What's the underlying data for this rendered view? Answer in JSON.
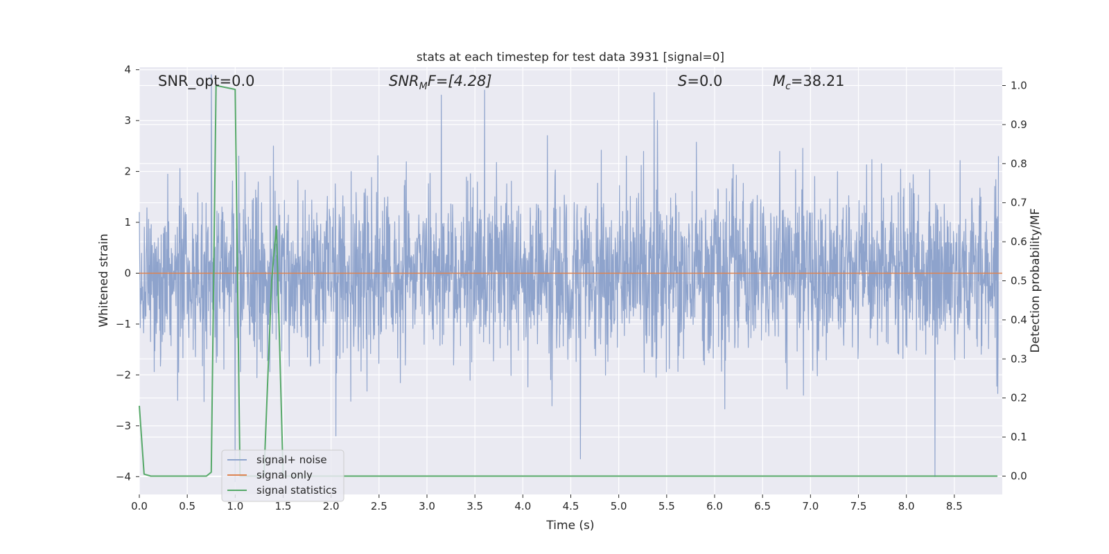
{
  "chart_data": {
    "type": "line",
    "title": "stats at each timestep for test data 3931 [signal=0]",
    "xlabel": "Time (s)",
    "ylabel": "Whitened strain",
    "ylabel_right": "Detection probability/MF",
    "xlim": [
      0.0,
      9.0
    ],
    "ylim": [
      -4.35,
      4.05
    ],
    "ylim_right": [
      -0.047,
      1.047
    ],
    "x_ticks": [
      "0.0",
      "0.5",
      "1.0",
      "1.5",
      "2.0",
      "2.5",
      "3.0",
      "3.5",
      "4.0",
      "4.5",
      "5.0",
      "5.5",
      "6.0",
      "6.5",
      "7.0",
      "7.5",
      "8.0",
      "8.5"
    ],
    "y_ticks": [
      "4",
      "3",
      "2",
      "1",
      "0",
      "−1",
      "−2",
      "−3",
      "−4"
    ],
    "y_ticks_right": [
      "1.0",
      "0.9",
      "0.8",
      "0.7",
      "0.6",
      "0.5",
      "0.4",
      "0.3",
      "0.2",
      "0.1",
      "0.0"
    ],
    "grid": true,
    "legend_position": "lower-left",
    "annotations": {
      "snr_opt": "SNR_opt=0.0",
      "snr_mf_base": "SNR",
      "snr_mf_sub": "M",
      "snr_mf_rest": "F=[4.28]",
      "s_italic": "S",
      "s_rest": "=0.0",
      "mc_base": "M",
      "mc_sub": "c",
      "mc_rest": "=38.21"
    },
    "series": [
      {
        "name": "signal+ noise",
        "color": "#8ea3cc",
        "axis": "left",
        "description_values": "whitened noise time series, amplitude mostly within ±2.2, peaks near ±3.5",
        "samples": [
          [
            0.0,
            1.2
          ],
          [
            0.4,
            -2.5
          ],
          [
            0.75,
            3.9
          ],
          [
            1.0,
            -4.1
          ],
          [
            1.4,
            2.5
          ],
          [
            2.05,
            -3.2
          ],
          [
            3.15,
            3.5
          ],
          [
            3.6,
            3.6
          ],
          [
            4.6,
            -3.65
          ],
          [
            5.37,
            3.55
          ],
          [
            8.3,
            -4.0
          ],
          [
            8.96,
            2.3
          ]
        ]
      },
      {
        "name": "signal only",
        "color": "#dd8452",
        "axis": "left",
        "x": [
          0.0,
          9.0
        ],
        "y": [
          0.0,
          0.0
        ]
      },
      {
        "name": "signal statistics",
        "color": "#55a868",
        "axis": "right",
        "x": [
          0.0,
          0.05,
          0.12,
          0.7,
          0.75,
          0.8,
          1.0,
          1.05,
          1.3,
          1.38,
          1.43,
          1.5,
          1.55,
          8.95
        ],
        "y": [
          0.18,
          0.005,
          0.0,
          0.0,
          0.01,
          1.0,
          0.99,
          0.0,
          0.0,
          0.5,
          0.64,
          0.0,
          0.0,
          0.0
        ]
      }
    ]
  }
}
